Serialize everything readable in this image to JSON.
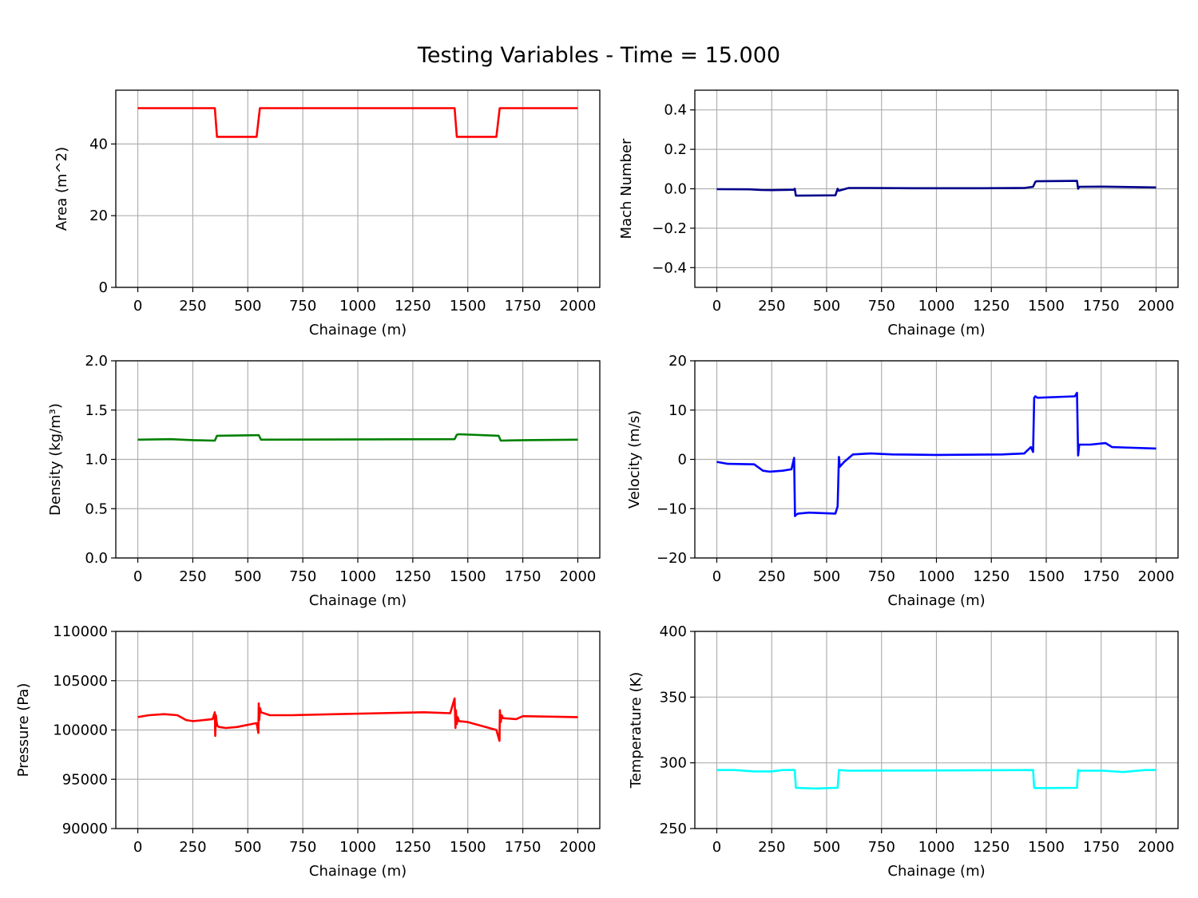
{
  "title": "Testing Variables - Time = 15.000",
  "chart_data": [
    {
      "type": "line",
      "xlabel": "Chainage (m)",
      "ylabel": "Area (m^2)",
      "xlim": [
        -100,
        2100
      ],
      "ylim": [
        0,
        55
      ],
      "xticks": [
        0,
        250,
        500,
        750,
        1000,
        1250,
        1500,
        1750,
        2000
      ],
      "yticks": [
        0,
        20,
        40
      ],
      "grid": true,
      "color": "#ff0000",
      "series": [
        {
          "x": [
            0,
            350,
            360,
            540,
            555,
            1440,
            1450,
            1630,
            1645,
            2000
          ],
          "y": [
            50,
            50,
            42,
            42,
            50,
            50,
            42,
            42,
            50,
            50
          ]
        }
      ]
    },
    {
      "type": "line",
      "xlabel": "Chainage (m)",
      "ylabel": "Mach Number",
      "xlim": [
        -100,
        2100
      ],
      "ylim": [
        -0.5,
        0.5
      ],
      "xticks": [
        0,
        250,
        500,
        750,
        1000,
        1250,
        1500,
        1750,
        2000
      ],
      "yticks": [
        -0.4,
        -0.2,
        0.0,
        0.2,
        0.4
      ],
      "ytick_labels": [
        "−0.4",
        "−0.2",
        "0.0",
        "0.2",
        "0.4"
      ],
      "grid": true,
      "color": "#00008b",
      "series": [
        {
          "x": [
            0,
            150,
            200,
            250,
            350,
            355,
            360,
            540,
            550,
            555,
            600,
            700,
            900,
            1200,
            1400,
            1440,
            1450,
            1455,
            1640,
            1645,
            1650,
            1750,
            2000
          ],
          "y": [
            -0.002,
            -0.003,
            -0.006,
            -0.007,
            -0.005,
            0.0,
            -0.035,
            -0.033,
            0.0,
            -0.01,
            0.004,
            0.004,
            0.003,
            0.003,
            0.004,
            0.01,
            0.035,
            0.038,
            0.04,
            0.0,
            0.01,
            0.011,
            0.007
          ]
        }
      ]
    },
    {
      "type": "line",
      "xlabel": "Chainage (m)",
      "ylabel": "Density (kg/m³)",
      "xlim": [
        -100,
        2100
      ],
      "ylim": [
        0.0,
        2.0
      ],
      "xticks": [
        0,
        250,
        500,
        750,
        1000,
        1250,
        1500,
        1750,
        2000
      ],
      "yticks": [
        0.0,
        0.5,
        1.0,
        1.5,
        2.0
      ],
      "ytick_labels": [
        "0.0",
        "0.5",
        "1.0",
        "1.5",
        "2.0"
      ],
      "grid": true,
      "color": "#008000",
      "series": [
        {
          "x": [
            0,
            150,
            250,
            350,
            360,
            540,
            550,
            560,
            1440,
            1450,
            1460,
            1640,
            1650,
            1760,
            2000
          ],
          "y": [
            1.2,
            1.205,
            1.195,
            1.19,
            1.24,
            1.245,
            1.245,
            1.2,
            1.205,
            1.25,
            1.255,
            1.24,
            1.19,
            1.195,
            1.2
          ]
        }
      ]
    },
    {
      "type": "line",
      "xlabel": "Chainage (m)",
      "ylabel": "Velocity (m/s)",
      "xlim": [
        -100,
        2100
      ],
      "ylim": [
        -20,
        20
      ],
      "xticks": [
        0,
        250,
        500,
        750,
        1000,
        1250,
        1500,
        1750,
        2000
      ],
      "yticks": [
        -20,
        -10,
        0,
        10,
        20
      ],
      "ytick_labels": [
        "−20",
        "−10",
        "0",
        "10",
        "20"
      ],
      "grid": true,
      "color": "#0000ff",
      "series": [
        {
          "x": [
            0,
            50,
            170,
            210,
            240,
            300,
            340,
            352,
            356,
            362,
            370,
            420,
            540,
            550,
            556,
            560,
            580,
            620,
            700,
            800,
            1000,
            1300,
            1400,
            1430,
            1440,
            1445,
            1450,
            1460,
            1630,
            1640,
            1645,
            1650,
            1700,
            1770,
            1800,
            2000
          ],
          "y": [
            -0.5,
            -0.9,
            -1.0,
            -2.3,
            -2.5,
            -2.3,
            -2.0,
            0.3,
            -11.5,
            -11.2,
            -11.0,
            -10.8,
            -11.0,
            -9.5,
            0.5,
            -1.5,
            -0.5,
            1.0,
            1.2,
            1.0,
            0.9,
            1.0,
            1.2,
            2.5,
            1.5,
            12.5,
            12.8,
            12.5,
            12.8,
            13.5,
            0.8,
            3.0,
            3.0,
            3.3,
            2.5,
            2.2
          ]
        }
      ]
    },
    {
      "type": "line",
      "xlabel": "Chainage (m)",
      "ylabel": "Pressure (Pa)",
      "xlim": [
        -100,
        2100
      ],
      "ylim": [
        90000,
        110000
      ],
      "xticks": [
        0,
        250,
        500,
        750,
        1000,
        1250,
        1500,
        1750,
        2000
      ],
      "yticks": [
        90000,
        95000,
        100000,
        105000,
        110000
      ],
      "grid": true,
      "color": "#ff0000",
      "series": [
        {
          "x": [
            0,
            50,
            120,
            180,
            220,
            250,
            300,
            340,
            350,
            352,
            355,
            358,
            362,
            370,
            400,
            450,
            540,
            548,
            550,
            552,
            556,
            560,
            600,
            700,
            900,
            1100,
            1300,
            1420,
            1440,
            1444,
            1446,
            1450,
            1454,
            1460,
            1500,
            1630,
            1644,
            1646,
            1650,
            1654,
            1660,
            1720,
            1750,
            2000
          ],
          "y": [
            101300,
            101500,
            101600,
            101500,
            101000,
            100900,
            101000,
            101100,
            101800,
            99400,
            101500,
            100800,
            100400,
            100300,
            100200,
            100300,
            100700,
            99700,
            102700,
            101000,
            102200,
            101800,
            101500,
            101500,
            101600,
            101700,
            101800,
            101700,
            103200,
            100200,
            102000,
            100600,
            101300,
            100900,
            100800,
            100000,
            98900,
            102000,
            100800,
            101500,
            101200,
            101100,
            101400,
            101300
          ]
        }
      ]
    },
    {
      "type": "line",
      "xlabel": "Chainage (m)",
      "ylabel": "Temperature (K)",
      "xlim": [
        -100,
        2100
      ],
      "ylim": [
        250,
        400
      ],
      "xticks": [
        0,
        250,
        500,
        750,
        1000,
        1250,
        1500,
        1750,
        2000
      ],
      "yticks": [
        250,
        300,
        350,
        400
      ],
      "grid": true,
      "color": "#00ffff",
      "series": [
        {
          "x": [
            0,
            80,
            170,
            250,
            300,
            355,
            360,
            450,
            540,
            550,
            556,
            600,
            1000,
            1440,
            1445,
            1450,
            1640,
            1645,
            1650,
            1760,
            1850,
            1950,
            2000
          ],
          "y": [
            294.5,
            294.5,
            293.5,
            293.5,
            294.5,
            294.5,
            281,
            280.5,
            281,
            281,
            294.5,
            294,
            294.2,
            294.5,
            281,
            280.8,
            281,
            294.5,
            294,
            294,
            293,
            294.5,
            294.5
          ]
        }
      ]
    }
  ]
}
